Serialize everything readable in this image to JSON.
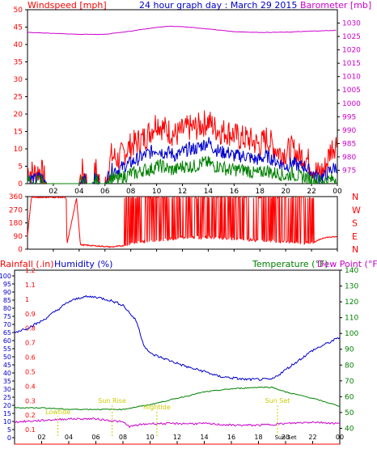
{
  "header": {
    "windspeed_label": "Windspeed [mph]",
    "title": "24 hour graph day : March 29 2015",
    "barometer_label": "Barometer [mb]"
  },
  "bottom_header": {
    "rainfall_label": "Rainfall (.in)",
    "humidity_label": "Humidity (%)",
    "temperature_label": "Temperature (°F)",
    "dewpoint_label": "Dew Point (°F)"
  },
  "annotations": {
    "low_tide": "Lowtide",
    "sun_rise": "Sun Rise",
    "high_tide": "Hightide",
    "sun_set": "Sun Set",
    "sun_set_clock": "Sun Set"
  },
  "colors": {
    "wind_gust": "#ff0000",
    "wind_avg": "#0000cc",
    "wind_low": "#008000",
    "barometer": "#cc00cc",
    "direction": "#ff0000",
    "rainfall": "#ff0000",
    "humidity": "#0000cc",
    "temperature": "#008000",
    "dewpoint": "#cc00cc",
    "annotation": "#cccc00"
  },
  "chart_data": [
    {
      "type": "line",
      "title": "24 hour graph day : March 29 2015",
      "x_ticks": [
        "02",
        "04",
        "06",
        "08",
        "10",
        "12",
        "14",
        "16",
        "18",
        "20",
        "22",
        "00"
      ],
      "ylabel_left": "Windspeed [mph]",
      "ylim_left": [
        0,
        50
      ],
      "yticks_left": [
        0,
        5,
        10,
        15,
        20,
        25,
        30,
        35,
        40,
        45,
        50
      ],
      "ylabel_right": "Barometer [mb]",
      "ylim_right": [
        970,
        1035
      ],
      "yticks_right": [
        975,
        980,
        985,
        990,
        995,
        1000,
        1005,
        1010,
        1015,
        1020,
        1025,
        1030
      ],
      "grid": false,
      "series": [
        {
          "key": "gust",
          "hours": [
            0,
            0.5,
            1,
            1.5,
            2,
            2.5,
            3,
            3.5,
            4,
            4.3,
            4.6,
            5,
            5.3,
            5.6,
            6,
            6.5,
            7,
            7.5,
            8,
            8.5,
            9,
            9.5,
            10,
            10.5,
            11,
            11.5,
            12,
            12.5,
            13,
            13.5,
            14,
            14.5,
            15,
            15.5,
            16,
            16.5,
            17,
            17.5,
            18,
            18.5,
            19,
            19.5,
            20,
            20.5,
            21,
            21.5,
            22,
            22.5,
            23,
            23.5,
            24
          ],
          "values": [
            4,
            3,
            4,
            0,
            0,
            0,
            0,
            0,
            0,
            4,
            0,
            0,
            4,
            0,
            0,
            8,
            7,
            9,
            11,
            12,
            13,
            15,
            18,
            16,
            15,
            14,
            15,
            16,
            16,
            17,
            18,
            16,
            15,
            15,
            14,
            13,
            13,
            12,
            11,
            13,
            11,
            9,
            9,
            10,
            8,
            8,
            5,
            3,
            4,
            10,
            12
          ]
        },
        {
          "key": "average",
          "hours": [
            0,
            0.5,
            1,
            1.5,
            2,
            2.5,
            3,
            3.5,
            4,
            4.3,
            4.6,
            5,
            5.3,
            5.6,
            6,
            6.5,
            7,
            7.5,
            8,
            8.5,
            9,
            9.5,
            10,
            10.5,
            11,
            11.5,
            12,
            12.5,
            13,
            13.5,
            14,
            14.5,
            15,
            15.5,
            16,
            16.5,
            17,
            17.5,
            18,
            18.5,
            19,
            19.5,
            20,
            20.5,
            21,
            21.5,
            22,
            22.5,
            23,
            23.5,
            24
          ],
          "values": [
            2,
            1,
            2,
            0,
            0,
            0,
            0,
            0,
            0,
            2,
            0,
            0,
            2,
            0,
            0,
            4,
            4,
            5,
            6,
            7,
            8,
            9,
            10,
            9,
            9,
            8,
            9,
            10,
            10,
            11,
            12,
            10,
            9,
            9,
            8,
            8,
            8,
            7,
            7,
            8,
            7,
            6,
            5,
            6,
            5,
            5,
            3,
            2,
            2,
            4,
            5
          ]
        },
        {
          "key": "lull",
          "hours": [
            0,
            0.5,
            1,
            1.5,
            2,
            2.5,
            3,
            3.5,
            4,
            4.3,
            4.6,
            5,
            5.3,
            5.6,
            6,
            6.5,
            7,
            7.5,
            8,
            8.5,
            9,
            9.5,
            10,
            10.5,
            11,
            11.5,
            12,
            12.5,
            13,
            13.5,
            14,
            14.5,
            15,
            15.5,
            16,
            16.5,
            17,
            17.5,
            18,
            18.5,
            19,
            19.5,
            20,
            20.5,
            21,
            21.5,
            22,
            22.5,
            23,
            23.5,
            24
          ],
          "values": [
            1,
            0,
            1,
            0,
            0,
            0,
            0,
            0,
            0,
            1,
            0,
            0,
            1,
            0,
            0,
            2,
            1,
            2,
            3,
            3,
            4,
            4,
            5,
            5,
            4,
            4,
            5,
            5,
            5,
            6,
            6,
            5,
            5,
            4,
            4,
            4,
            4,
            3,
            3,
            4,
            3,
            3,
            2,
            3,
            2,
            2,
            1,
            1,
            1,
            1,
            2
          ]
        },
        {
          "name": "Barometer [mb]",
          "key": "barometer",
          "hours": [
            0,
            2,
            4,
            6,
            8,
            10,
            11,
            12,
            14,
            16,
            18,
            20,
            22,
            24
          ],
          "values": [
            1026.5,
            1026.2,
            1025.8,
            1025.8,
            1027,
            1028.4,
            1028.8,
            1028.7,
            1027.8,
            1026.8,
            1026.5,
            1026.6,
            1027,
            1027.3
          ]
        }
      ]
    },
    {
      "type": "line",
      "x_ticks": [
        "02",
        "04",
        "06",
        "08",
        "10",
        "12",
        "14",
        "16",
        "18",
        "20",
        "22",
        "00"
      ],
      "yticks_left": [
        0,
        90,
        180,
        270,
        360
      ],
      "ylim_left": [
        0,
        360
      ],
      "yticks_right": [
        "N",
        "W",
        "S",
        "E",
        "N"
      ],
      "series": [
        {
          "key": "direction",
          "hours": [
            0,
            0.3,
            2.9,
            3.0,
            3.05,
            3.8,
            4.1,
            6.5,
            7.5,
            8,
            9,
            10,
            11,
            12,
            14,
            16,
            18,
            20,
            22,
            22.5,
            23,
            24
          ],
          "values": [
            90,
            355,
            355,
            340,
            30,
            350,
            30,
            15,
            25,
            40,
            50,
            60,
            70,
            80,
            80,
            70,
            60,
            50,
            40,
            60,
            80,
            85
          ]
        }
      ]
    },
    {
      "type": "line",
      "x_ticks": [
        "02",
        "04",
        "06",
        "08",
        "10",
        "12",
        "14",
        "16",
        "18",
        "20",
        "22",
        "00"
      ],
      "ylabel_left": "Rainfall (.in)",
      "ylim_rain": [
        0,
        1.2
      ],
      "yticks_rain": [
        0,
        0.1,
        0.2,
        0.3,
        0.4,
        0.5,
        0.6,
        0.7,
        0.8,
        0.9,
        1,
        1.1,
        1.2
      ],
      "ylabel_humidity": "Humidity (%)",
      "ylim_humidity": [
        0,
        100
      ],
      "yticks_humidity": [
        0,
        5,
        10,
        15,
        20,
        25,
        30,
        35,
        40,
        45,
        50,
        55,
        60,
        65,
        70,
        75,
        80,
        85,
        90,
        95,
        100
      ],
      "ylabel_right": "Temperature (°F)",
      "ylim_right": [
        30,
        140
      ],
      "yticks_right": [
        40,
        50,
        60,
        70,
        80,
        90,
        100,
        110,
        120,
        130,
        140
      ],
      "series": [
        {
          "name": "Humidity (%)",
          "key": "humidity",
          "hours": [
            0,
            1,
            2,
            3,
            4,
            5,
            6,
            7,
            8,
            9,
            9.5,
            10,
            11,
            12,
            13,
            14,
            15,
            16,
            17,
            18,
            19,
            20,
            21,
            22,
            23,
            24
          ],
          "values": [
            65,
            68,
            72,
            78,
            84,
            87,
            87,
            85,
            82,
            72,
            58,
            52,
            49,
            46,
            43,
            41,
            38,
            37,
            36,
            36,
            36,
            42,
            48,
            54,
            58,
            62
          ]
        },
        {
          "name": "Temperature (°F)",
          "key": "temperature",
          "hours": [
            0,
            2,
            4,
            6,
            8,
            10,
            12,
            14,
            16,
            18,
            19,
            20,
            22,
            24
          ],
          "values": [
            53,
            53,
            52,
            52,
            52,
            55,
            59,
            63,
            65,
            66,
            66,
            63,
            59,
            54
          ]
        },
        {
          "name": "Dew Point (°F)",
          "key": "dewpoint",
          "hours": [
            0,
            2,
            4,
            6,
            8,
            8.5,
            9,
            10,
            12,
            14,
            16,
            18,
            20,
            22,
            24
          ],
          "values": [
            44,
            45,
            46,
            46,
            44,
            41,
            42,
            43,
            43,
            43,
            42,
            42,
            43,
            44,
            43
          ]
        },
        {
          "name": "Rainfall (.in)",
          "key": "rainfall",
          "hours": [
            0,
            24
          ],
          "values": [
            0,
            0
          ]
        }
      ]
    }
  ]
}
